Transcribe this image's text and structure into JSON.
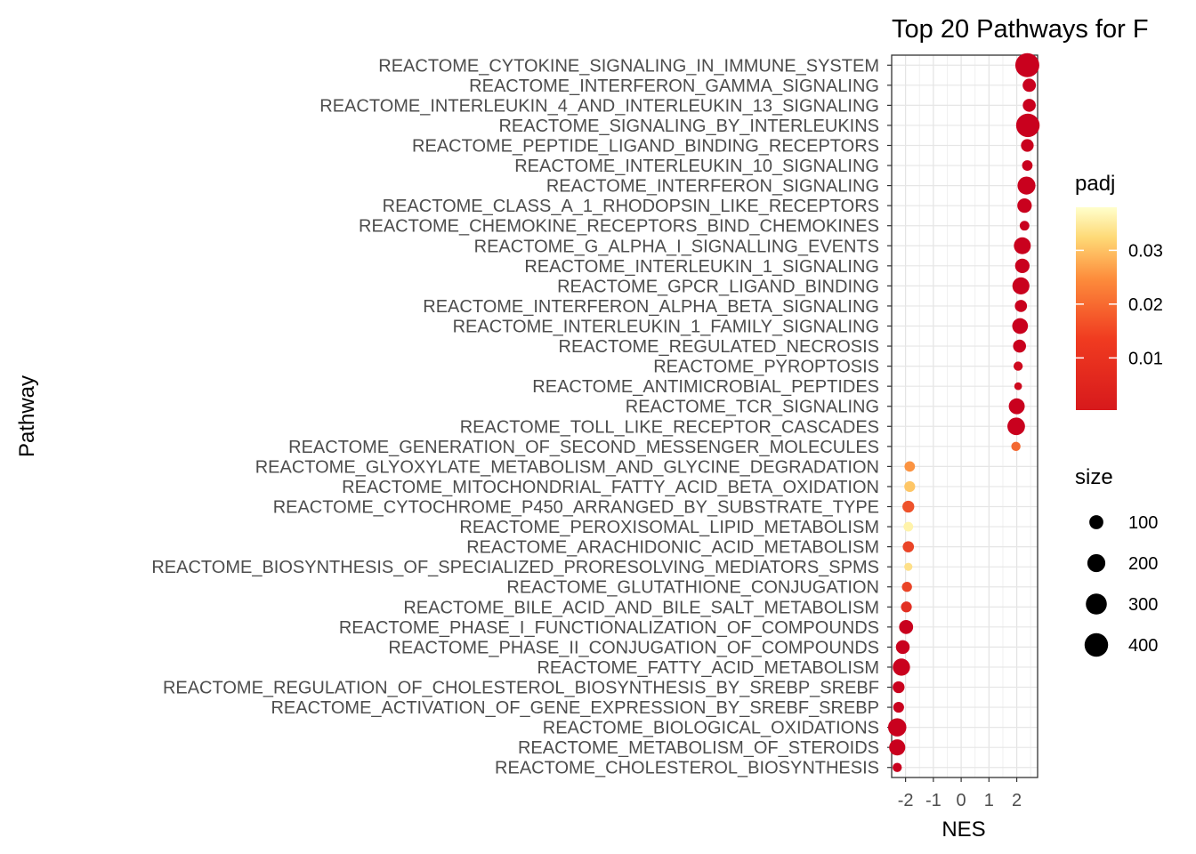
{
  "chart_data": {
    "type": "scatter",
    "title": "Top 20 Pathways for  F",
    "xlabel": "NES",
    "ylabel": "Pathway",
    "xlim": [
      -2.5,
      2.75
    ],
    "xticks": [
      "-2",
      "-1",
      "0",
      "1",
      "2"
    ],
    "grid": true,
    "points": [
      {
        "pathway": "REACTOME_CYTOKINE_SIGNALING_IN_IMMUNE_SYSTEM",
        "nes": 2.38,
        "padj": 0.0005,
        "size": 420
      },
      {
        "pathway": "REACTOME_INTERFERON_GAMMA_SIGNALING",
        "nes": 2.45,
        "padj": 0.0005,
        "size": 85
      },
      {
        "pathway": "REACTOME_INTERLEUKIN_4_AND_INTERLEUKIN_13_SIGNALING",
        "nes": 2.45,
        "padj": 0.0005,
        "size": 80
      },
      {
        "pathway": "REACTOME_SIGNALING_BY_INTERLEUKINS",
        "nes": 2.4,
        "padj": 0.0005,
        "size": 400
      },
      {
        "pathway": "REACTOME_PEPTIDE_LIGAND_BINDING_RECEPTORS",
        "nes": 2.38,
        "padj": 0.0005,
        "size": 75
      },
      {
        "pathway": "REACTOME_INTERLEUKIN_10_SIGNALING",
        "nes": 2.38,
        "padj": 0.0005,
        "size": 40
      },
      {
        "pathway": "REACTOME_INTERFERON_SIGNALING",
        "nes": 2.35,
        "padj": 0.0005,
        "size": 200
      },
      {
        "pathway": "REACTOME_CLASS_A_1_RHODOPSIN_LIKE_RECEPTORS",
        "nes": 2.28,
        "padj": 0.0005,
        "size": 110
      },
      {
        "pathway": "REACTOME_CHEMOKINE_RECEPTORS_BIND_CHEMOKINES",
        "nes": 2.28,
        "padj": 0.0005,
        "size": 30
      },
      {
        "pathway": "REACTOME_G_ALPHA_I_SIGNALLING_EVENTS",
        "nes": 2.2,
        "padj": 0.0005,
        "size": 170
      },
      {
        "pathway": "REACTOME_INTERLEUKIN_1_SIGNALING",
        "nes": 2.2,
        "padj": 0.0005,
        "size": 110
      },
      {
        "pathway": "REACTOME_GPCR_LIGAND_BINDING",
        "nes": 2.15,
        "padj": 0.0005,
        "size": 175
      },
      {
        "pathway": "REACTOME_INTERFERON_ALPHA_BETA_SIGNALING",
        "nes": 2.15,
        "padj": 0.0005,
        "size": 65
      },
      {
        "pathway": "REACTOME_INTERLEUKIN_1_FAMILY_SIGNALING",
        "nes": 2.12,
        "padj": 0.0005,
        "size": 140
      },
      {
        "pathway": "REACTOME_REGULATED_NECROSIS",
        "nes": 2.1,
        "padj": 0.0005,
        "size": 80
      },
      {
        "pathway": "REACTOME_PYROPTOSIS",
        "nes": 2.05,
        "padj": 0.002,
        "size": 25
      },
      {
        "pathway": "REACTOME_ANTIMICROBIAL_PEPTIDES",
        "nes": 2.05,
        "padj": 0.002,
        "size": 12
      },
      {
        "pathway": "REACTOME_TCR_SIGNALING",
        "nes": 2.0,
        "padj": 0.0005,
        "size": 145
      },
      {
        "pathway": "REACTOME_TOLL_LIKE_RECEPTOR_CASCADES",
        "nes": 1.98,
        "padj": 0.0005,
        "size": 190
      },
      {
        "pathway": "REACTOME_GENERATION_OF_SECOND_MESSENGER_MOLECULES",
        "nes": 1.97,
        "padj": 0.016,
        "size": 25
      },
      {
        "pathway": "REACTOME_GLYOXYLATE_METABOLISM_AND_GLYCINE_DEGRADATION",
        "nes": -1.85,
        "padj": 0.022,
        "size": 40
      },
      {
        "pathway": "REACTOME_MITOCHONDRIAL_FATTY_ACID_BETA_OXIDATION",
        "nes": -1.85,
        "padj": 0.029,
        "size": 45
      },
      {
        "pathway": "REACTOME_CYTOCHROME_P450_ARRANGED_BY_SUBSTRATE_TYPE",
        "nes": -1.9,
        "padj": 0.013,
        "size": 60
      },
      {
        "pathway": "REACTOME_PEROXISOMAL_LIPID_METABOLISM",
        "nes": -1.9,
        "padj": 0.036,
        "size": 30
      },
      {
        "pathway": "REACTOME_ARACHIDONIC_ACID_METABOLISM",
        "nes": -1.9,
        "padj": 0.011,
        "size": 50
      },
      {
        "pathway": "REACTOME_BIOSYNTHESIS_OF_SPECIALIZED_PRORESOLVING_MEDIATORS_SPMS",
        "nes": -1.9,
        "padj": 0.033,
        "size": 15
      },
      {
        "pathway": "REACTOME_GLUTATHIONE_CONJUGATION",
        "nes": -1.95,
        "padj": 0.011,
        "size": 35
      },
      {
        "pathway": "REACTOME_BILE_ACID_AND_BILE_SALT_METABOLISM",
        "nes": -1.97,
        "padj": 0.008,
        "size": 45
      },
      {
        "pathway": "REACTOME_PHASE_I_FUNCTIONALIZATION_OF_COMPOUNDS",
        "nes": -1.98,
        "padj": 0.0005,
        "size": 100
      },
      {
        "pathway": "REACTOME_PHASE_II_CONJUGATION_OF_COMPOUNDS",
        "nes": -2.1,
        "padj": 0.0005,
        "size": 95
      },
      {
        "pathway": "REACTOME_FATTY_ACID_METABOLISM",
        "nes": -2.15,
        "padj": 0.0005,
        "size": 180
      },
      {
        "pathway": "REACTOME_REGULATION_OF_CHOLESTEROL_BIOSYNTHESIS_BY_SREBP_SREBF",
        "nes": -2.25,
        "padj": 0.0005,
        "size": 60
      },
      {
        "pathway": "REACTOME_ACTIVATION_OF_GENE_EXPRESSION_BY_SREBF_SREBP",
        "nes": -2.25,
        "padj": 0.0005,
        "size": 45
      },
      {
        "pathway": "REACTOME_BIOLOGICAL_OXIDATIONS",
        "nes": -2.3,
        "padj": 0.0005,
        "size": 210
      },
      {
        "pathway": "REACTOME_METABOLISM_OF_STEROIDS",
        "nes": -2.3,
        "padj": 0.0005,
        "size": 150
      },
      {
        "pathway": "REACTOME_CHOLESTEROL_BIOSYNTHESIS",
        "nes": -2.3,
        "padj": 0.0005,
        "size": 25
      }
    ],
    "legend": {
      "color": {
        "title": "padj",
        "scale": "RdYlOr (red low, yellow high)",
        "ticks": [
          "0.01",
          "0.02",
          "0.03"
        ],
        "tick_values": [
          0.01,
          0.02,
          0.03
        ],
        "range": [
          0.0003,
          0.038
        ],
        "colors": [
          "#d7191c",
          "#fd8d3c",
          "#fed976",
          "#ffffcc"
        ]
      },
      "size": {
        "title": "size",
        "ticks": [
          "100",
          "200",
          "300",
          "400"
        ],
        "tick_values": [
          100,
          200,
          300,
          400
        ]
      }
    }
  }
}
